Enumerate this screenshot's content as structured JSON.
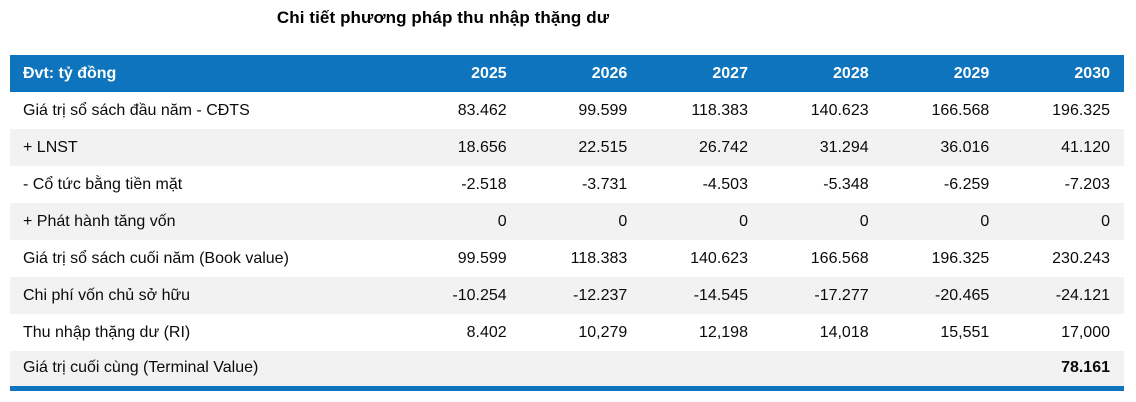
{
  "title": "Chi tiết phương pháp thu nhập thặng dư",
  "table": {
    "unit_label": "Đvt: tỷ đồng",
    "years": [
      "2025",
      "2026",
      "2027",
      "2028",
      "2029",
      "2030"
    ],
    "rows": [
      {
        "label": "Giá trị sổ sách đầu năm - CĐTS",
        "values": [
          "83.462",
          "99.599",
          "118.383",
          "140.623",
          "166.568",
          "196.325"
        ],
        "bold_last": false
      },
      {
        "label": "+ LNST",
        "values": [
          "18.656",
          "22.515",
          "26.742",
          "31.294",
          "36.016",
          "41.120"
        ],
        "bold_last": false
      },
      {
        "label": "- Cổ tức bằng tiền mặt",
        "values": [
          "-2.518",
          "-3.731",
          "-4.503",
          "-5.348",
          "-6.259",
          "-7.203"
        ],
        "bold_last": false
      },
      {
        "label": "+ Phát hành tăng vốn",
        "values": [
          "0",
          "0",
          "0",
          "0",
          "0",
          "0"
        ],
        "bold_last": false
      },
      {
        "label": "Giá trị sổ sách cuối năm (Book value)",
        "values": [
          "99.599",
          "118.383",
          "140.623",
          "166.568",
          "196.325",
          "230.243"
        ],
        "bold_last": false
      },
      {
        "label": "Chi phí vốn chủ sở hữu",
        "values": [
          "-10.254",
          "-12.237",
          "-14.545",
          "-17.277",
          "-20.465",
          "-24.121"
        ],
        "bold_last": false
      },
      {
        "label": "Thu nhập thặng dư (RI)",
        "values": [
          "8.402",
          "10,279",
          "12,198",
          "14,018",
          "15,551",
          "17,000"
        ],
        "bold_last": false
      },
      {
        "label": "Giá trị cuối cùng (Terminal Value)",
        "values": [
          "",
          "",
          "",
          "",
          "",
          "78.161"
        ],
        "bold_last": true
      }
    ]
  },
  "colors": {
    "header_bg": "#0d74bd",
    "stripe_bg": "#f2f2f2",
    "header_text": "#ffffff"
  }
}
